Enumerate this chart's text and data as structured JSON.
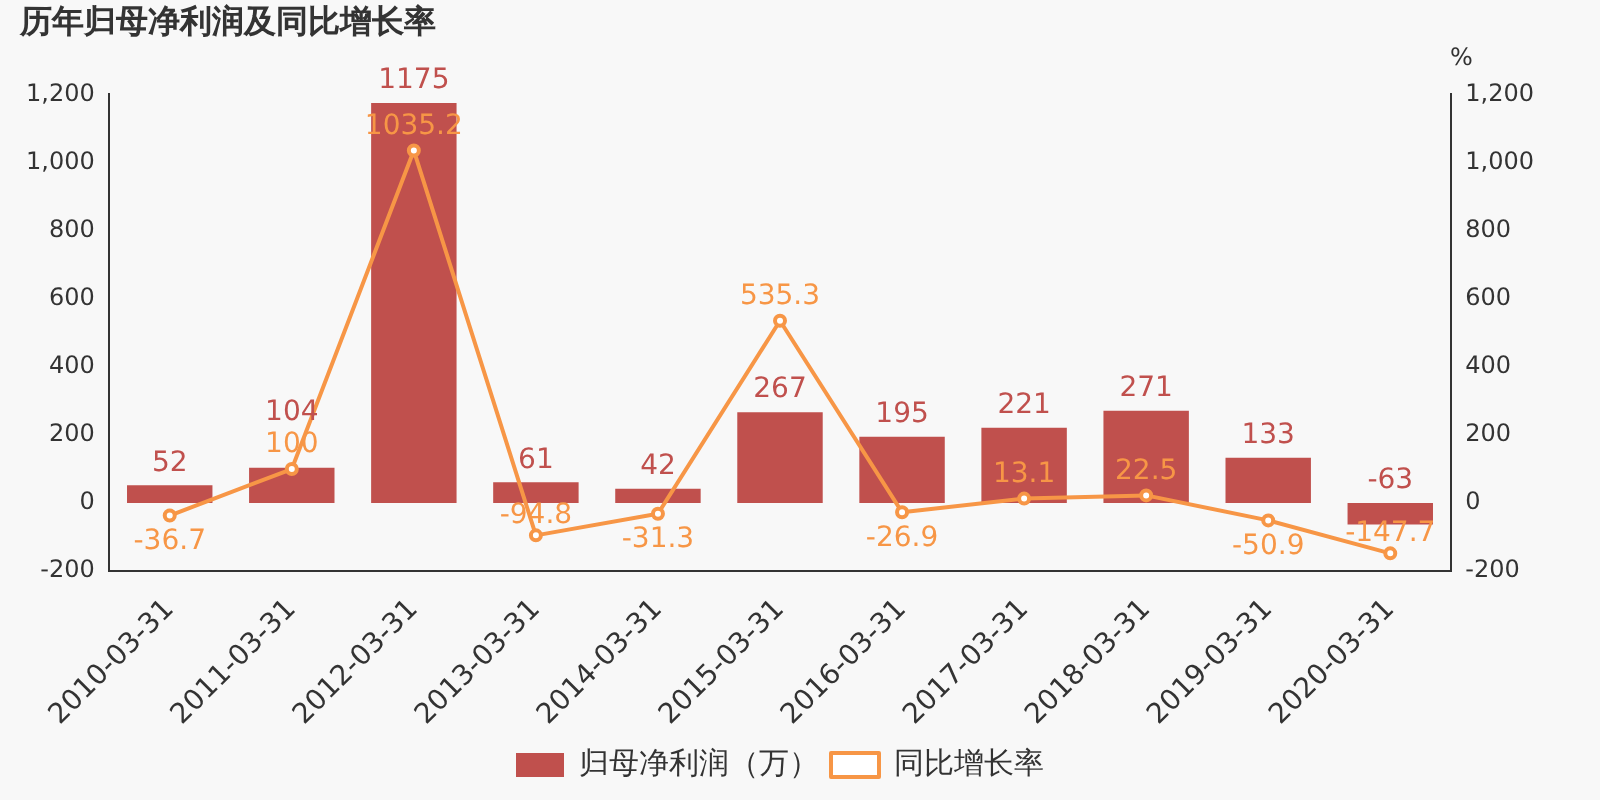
{
  "chart_data": {
    "type": "bar",
    "title": "历年归母净利润及同比增长率",
    "y2label": "%",
    "categories": [
      "2010-03-31",
      "2011-03-31",
      "2012-03-31",
      "2013-03-31",
      "2014-03-31",
      "2015-03-31",
      "2016-03-31",
      "2017-03-31",
      "2018-03-31",
      "2019-03-31",
      "2020-03-31"
    ],
    "series": [
      {
        "name": "归母净利润（万）",
        "color": "#c0504d",
        "values": [
          52,
          104,
          1175,
          61,
          42,
          267,
          195,
          221,
          271,
          133,
          -63
        ]
      },
      {
        "name": "同比增长率",
        "type": "line",
        "axis": "y2",
        "color": "#f79646",
        "values": [
          -36.7,
          100,
          1035.2,
          -94.8,
          -31.3,
          535.3,
          -26.9,
          13.1,
          22.5,
          -50.9,
          -147.7
        ]
      }
    ],
    "ylim": [
      -200,
      1200
    ],
    "yticks": [
      -200,
      0,
      200,
      400,
      600,
      800,
      "1,000",
      "1,200"
    ],
    "y2lim": [
      -200,
      1200
    ],
    "y2ticks": [
      -200,
      0,
      200,
      400,
      600,
      800,
      "1,000",
      "1,200"
    ],
    "data_labels": true,
    "legend": "bottom",
    "marker": "circle",
    "grid": false
  }
}
